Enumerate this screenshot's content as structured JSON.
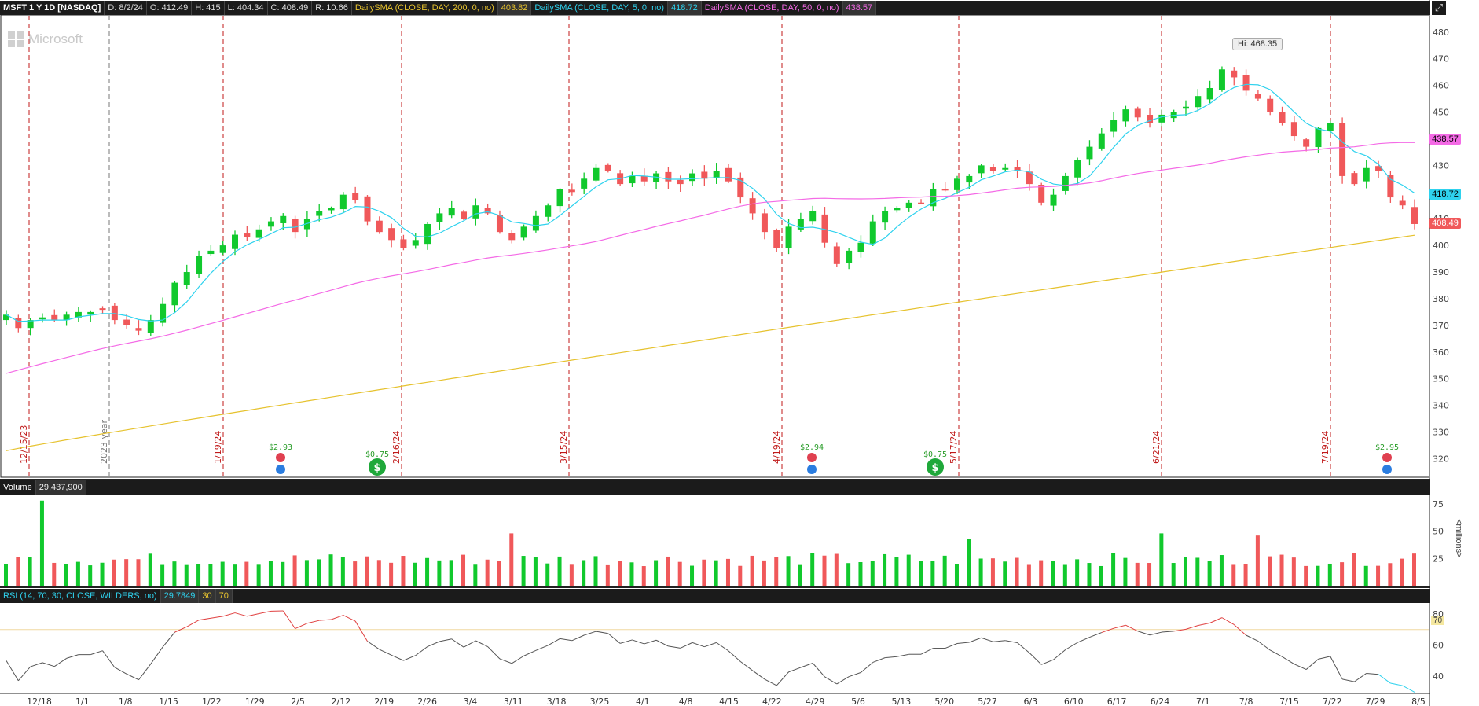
{
  "header": {
    "symbol": "MSFT 1 Y 1D [NASDAQ]",
    "date": "D: 8/2/24",
    "open": "O: 412.49",
    "high": "H: 415",
    "low": "L: 404.34",
    "close": "C: 408.49",
    "range": "R: 10.66",
    "sma200_label": "DailySMA (CLOSE, DAY, 200, 0, no)",
    "sma200_value": "403.82",
    "sma5_label": "DailySMA (CLOSE, DAY, 5, 0, no)",
    "sma5_value": "418.72",
    "sma50_label": "DailySMA (CLOSE, DAY, 50, 0, no)",
    "sma50_value": "438.57"
  },
  "watermark": "Microsoft",
  "high_badge": "Hi: 468.35",
  "price_tags": {
    "sma50": "438.57",
    "sma5": "418.72",
    "close": "408.49"
  },
  "volume_header": {
    "label": "Volume",
    "value": "29,437,900"
  },
  "volume_unit": "<millions>",
  "rsi_header": {
    "label": "RSI (14, 70, 30, CLOSE, WILDERS, no)",
    "value": "29.7849",
    "low": "30",
    "high": "70"
  },
  "rsi_tag": "70",
  "colors": {
    "up": "#11c92d",
    "down": "#f0585a",
    "sma200": "#e6c22e",
    "sma5": "#2fd2ee",
    "sma50": "#f46ae6",
    "events": "#c01a1a",
    "rsi": "#555555",
    "rsi_overbought": "#e04040"
  },
  "chart_data": [
    {
      "type": "candlestick",
      "name": "price",
      "ylim": [
        316,
        482
      ],
      "y_ticks": [
        320,
        330,
        340,
        350,
        360,
        370,
        380,
        390,
        400,
        410,
        420,
        430,
        440,
        450,
        460,
        470,
        480
      ],
      "x_ticks": [
        "12/18",
        "1/1",
        "1/8",
        "1/15",
        "1/22",
        "1/29",
        "2/5",
        "2/12",
        "2/19",
        "2/26",
        "3/4",
        "3/11",
        "3/18",
        "3/25",
        "4/1",
        "4/8",
        "4/15",
        "4/22",
        "4/29",
        "5/6",
        "5/13",
        "5/20",
        "5/27",
        "6/3",
        "6/10",
        "6/17",
        "6/24",
        "7/1",
        "7/8",
        "7/15",
        "7/22",
        "7/29",
        "8/5"
      ],
      "close_path": [
        374,
        369,
        372,
        373,
        372,
        374,
        375,
        375,
        376,
        372,
        370,
        368,
        372,
        378,
        386,
        390,
        396,
        398,
        400,
        404,
        403,
        406,
        409,
        411,
        405,
        410,
        413,
        414,
        419,
        417,
        409,
        405,
        402,
        399,
        402,
        408,
        412,
        414,
        410,
        415,
        412,
        405,
        402,
        407,
        411,
        415,
        421,
        420,
        425,
        429,
        428,
        423,
        426,
        424,
        427,
        424,
        423,
        427,
        425,
        428,
        424,
        418,
        412,
        405,
        399,
        407,
        410,
        413,
        401,
        393,
        398,
        401,
        409,
        413,
        414,
        416,
        416,
        421,
        421,
        425,
        426,
        430,
        428,
        429,
        428,
        423,
        416,
        419,
        426,
        432,
        437,
        442,
        447,
        451,
        448,
        446,
        449,
        450,
        452,
        456,
        459,
        466,
        463,
        458,
        455,
        450,
        446,
        441,
        437,
        444,
        446,
        426,
        423,
        429,
        428,
        418,
        415,
        408
      ],
      "high_marker": 468.35,
      "last_close": 408.49,
      "events": [
        "12/15/23",
        "2023 year",
        "1/19/24",
        "2/16/24",
        "3/15/24",
        "4/19/24",
        "5/17/24",
        "6/21/24",
        "7/19/24"
      ],
      "event_notes": [
        "$2.93",
        "$0.75",
        "$2.94",
        "$0.75",
        "$2.95"
      ],
      "sma200_last": 403.82,
      "sma5_last": 418.72,
      "sma50_last": 438.57
    },
    {
      "type": "bar",
      "name": "volume",
      "y_ticks": [
        25,
        50,
        75
      ],
      "last_value": 29437900
    },
    {
      "type": "line",
      "name": "rsi",
      "y_ticks": [
        40,
        60,
        80
      ],
      "overbought": 70,
      "last_value": 29.7849
    }
  ]
}
